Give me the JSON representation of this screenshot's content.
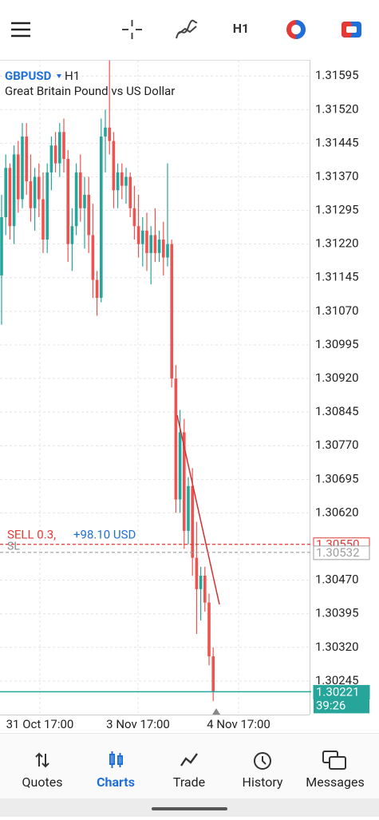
{
  "toolbar": {
    "timeframe": "H1"
  },
  "chart_data": {
    "type": "candlestick",
    "symbol": "GBPUSD",
    "timeframe": "H1",
    "description": "Great Britain Pound vs US Dollar",
    "up_color": "#26a69a",
    "down_color": "#ef5350",
    "grid": true,
    "ylim": [
      1.3017,
      1.31631
    ],
    "yticks": [
      1.31595,
      {
        "value": 1.3152,
        "label": "1.31520"
      },
      1.31445,
      {
        "value": 1.3137,
        "label": "1.31370"
      },
      1.31295,
      {
        "value": 1.3122,
        "label": "1.31220"
      },
      1.31145,
      {
        "value": 1.3107,
        "label": "1.31070"
      },
      1.30995,
      {
        "value": 1.3092,
        "label": "1.30920"
      },
      1.30845,
      {
        "value": 1.3077,
        "label": "1.30770"
      },
      1.30695,
      {
        "value": 1.3062,
        "label": "1.30620"
      },
      {
        "value": 1.3055,
        "label": "1.30550"
      },
      {
        "value": 1.3047,
        "label": "1.30470"
      },
      1.30395,
      {
        "value": 1.3032,
        "label": "1.30320"
      },
      1.30245
    ],
    "x_labels": [
      "31 Oct 17:00",
      "3 Nov 17:00",
      "4 Nov 17:00"
    ],
    "open": [
      1.3115,
      1.3128,
      1.3139,
      1.3126,
      1.3142,
      1.3132,
      1.3146,
      1.3136,
      1.313,
      1.3137,
      1.3132,
      1.3123,
      1.3138,
      1.3144,
      1.314,
      1.3147,
      1.3141,
      1.3122,
      1.3126,
      1.3138,
      1.313,
      1.3133,
      1.3124,
      1.3114,
      1.311,
      1.3146,
      1.3148,
      1.3145,
      1.3134,
      1.3138,
      1.3135,
      1.3137,
      1.313,
      1.3126,
      1.3122,
      1.3125,
      1.312,
      1.3124,
      1.312,
      1.3123,
      1.3119,
      1.3122,
      1.3092,
      1.3065,
      1.308,
      1.3058,
      1.3068,
      1.3052,
      1.3045,
      1.3048,
      1.3042,
      1.303
    ],
    "high": [
      1.3133,
      1.3142,
      1.314,
      1.3144,
      1.3145,
      1.3149,
      1.3149,
      1.3142,
      1.3139,
      1.314,
      1.3138,
      1.314,
      1.3146,
      1.3147,
      1.3149,
      1.315,
      1.3143,
      1.313,
      1.314,
      1.3142,
      1.3137,
      1.3137,
      1.3131,
      1.3116,
      1.315,
      1.3152,
      1.3163,
      1.3147,
      1.314,
      1.314,
      1.3139,
      1.3138,
      1.3135,
      1.3133,
      1.3128,
      1.3129,
      1.3126,
      1.313,
      1.3125,
      1.3127,
      1.314,
      1.3123,
      1.3095,
      1.3085,
      1.3083,
      1.307,
      1.3072,
      1.306,
      1.305,
      1.305,
      1.3044,
      1.3032
    ],
    "low": [
      1.3104,
      1.3124,
      1.3123,
      1.3122,
      1.3129,
      1.313,
      1.3133,
      1.3127,
      1.3125,
      1.3128,
      1.312,
      1.312,
      1.3134,
      1.3138,
      1.3137,
      1.3138,
      1.3118,
      1.3116,
      1.3124,
      1.3127,
      1.3121,
      1.312,
      1.311,
      1.3106,
      1.3109,
      1.3138,
      1.3142,
      1.313,
      1.313,
      1.3132,
      1.3131,
      1.3128,
      1.3123,
      1.3119,
      1.3117,
      1.3116,
      1.3113,
      1.3118,
      1.3118,
      1.3115,
      1.3117,
      1.309,
      1.3062,
      1.3062,
      1.3054,
      1.3055,
      1.3048,
      1.3035,
      1.3038,
      1.304,
      1.3028,
      1.302
    ],
    "close": [
      1.3128,
      1.3139,
      1.3126,
      1.3142,
      1.3132,
      1.3146,
      1.3136,
      1.313,
      1.3137,
      1.3132,
      1.3123,
      1.3138,
      1.3144,
      1.314,
      1.3147,
      1.3141,
      1.3122,
      1.3126,
      1.3138,
      1.313,
      1.3133,
      1.3124,
      1.3114,
      1.311,
      1.3146,
      1.3148,
      1.3145,
      1.3134,
      1.3138,
      1.3135,
      1.3137,
      1.313,
      1.3126,
      1.3122,
      1.3125,
      1.312,
      1.3124,
      1.312,
      1.3123,
      1.3119,
      1.3122,
      1.3092,
      1.3065,
      1.308,
      1.3058,
      1.3068,
      1.3052,
      1.3045,
      1.3048,
      1.3042,
      1.303,
      1.30221
    ],
    "price_lines": [
      {
        "value": 1.3055,
        "label": "1.30550",
        "color": "#e53935",
        "style": "dashed"
      },
      {
        "value": 1.30532,
        "label": "1.30532",
        "color": "#9e9e9e",
        "style": "dashed"
      },
      {
        "value": 1.30221,
        "label": "1.30221",
        "color": "#26a69a",
        "style": "solid"
      }
    ],
    "order_text": "SELL 0.3,",
    "profit_text": "+98.10 USD",
    "sl_text": "SL",
    "countdown": "39:26"
  },
  "nav": {
    "active_color": "#1e6fd9",
    "items": [
      {
        "label": "Quotes"
      },
      {
        "label": "Charts",
        "active": true
      },
      {
        "label": "Trade"
      },
      {
        "label": "History"
      },
      {
        "label": "Messages"
      }
    ]
  }
}
